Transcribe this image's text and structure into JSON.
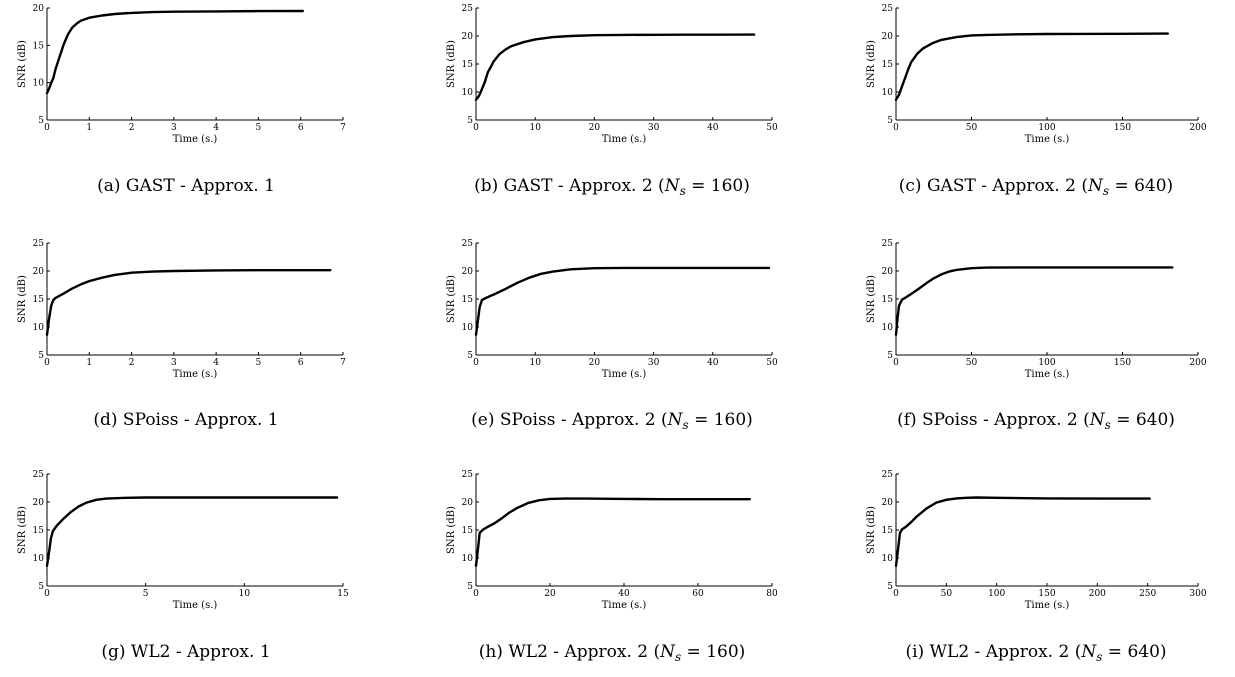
{
  "chart_data": [
    {
      "type": "line",
      "caption_prefix": "(a) GAST - Approx. 1",
      "caption_suffix": "",
      "xlabel": "Time (s.)",
      "ylabel": "SNR (dB)",
      "xlim": [
        0,
        7
      ],
      "ylim": [
        5,
        20
      ],
      "xticks": [
        "0",
        "1",
        "2",
        "3",
        "4",
        "5",
        "6",
        "7"
      ],
      "yticks": [
        "5",
        "10",
        "15",
        "20"
      ],
      "series": [
        {
          "x": [
            0,
            0.05,
            0.1,
            0.15,
            0.2,
            0.3,
            0.4,
            0.5,
            0.6,
            0.7,
            0.8,
            1,
            1.3,
            1.6,
            2,
            2.5,
            3,
            4,
            5,
            6.05
          ],
          "y": [
            8.6,
            9.2,
            10,
            10.6,
            11.8,
            13.5,
            15.2,
            16.5,
            17.4,
            17.9,
            18.3,
            18.7,
            19,
            19.2,
            19.35,
            19.45,
            19.5,
            19.55,
            19.58,
            19.6
          ]
        }
      ]
    },
    {
      "type": "line",
      "caption_prefix": "(b) GAST - Approx. 2 (",
      "caption_var": "N",
      "caption_sub": "s",
      "caption_suffix": " = 160)",
      "xlabel": "Time (s.)",
      "ylabel": "SNR (dB)",
      "xlim": [
        0,
        50
      ],
      "ylim": [
        5,
        25
      ],
      "xticks": [
        "0",
        "10",
        "20",
        "30",
        "40",
        "50"
      ],
      "yticks": [
        "5",
        "10",
        "15",
        "20",
        "25"
      ],
      "series": [
        {
          "x": [
            0,
            0.5,
            1,
            1.5,
            2,
            3,
            4,
            5,
            6,
            8,
            10,
            13,
            16,
            20,
            25,
            30,
            35,
            40,
            47
          ],
          "y": [
            8.6,
            9.3,
            10.5,
            11.8,
            13.5,
            15.5,
            16.8,
            17.6,
            18.2,
            18.9,
            19.4,
            19.8,
            20,
            20.15,
            20.2,
            20.22,
            20.23,
            20.24,
            20.25
          ]
        }
      ]
    },
    {
      "type": "line",
      "caption_prefix": "(c) GAST - Approx. 2 (",
      "caption_var": "N",
      "caption_sub": "s",
      "caption_suffix": " = 640)",
      "xlabel": "Time (s.)",
      "ylabel": "SNR (dB)",
      "xlim": [
        0,
        200
      ],
      "ylim": [
        5,
        25
      ],
      "xticks": [
        "0",
        "50",
        "100",
        "150",
        "200"
      ],
      "yticks": [
        "5",
        "10",
        "15",
        "20",
        "25"
      ],
      "series": [
        {
          "x": [
            0,
            2,
            4,
            6,
            8,
            10,
            14,
            18,
            24,
            30,
            40,
            50,
            60,
            80,
            100,
            120,
            150,
            180
          ],
          "y": [
            8.6,
            9.5,
            11,
            12.5,
            14,
            15.3,
            16.8,
            17.8,
            18.7,
            19.3,
            19.8,
            20.1,
            20.2,
            20.3,
            20.35,
            20.38,
            20.4,
            20.42
          ]
        }
      ]
    },
    {
      "type": "line",
      "caption_prefix": "(d) SPoiss - Approx. 1",
      "caption_suffix": "",
      "xlabel": "Time (s.)",
      "ylabel": "SNR (dB)",
      "xlim": [
        0,
        7
      ],
      "ylim": [
        5,
        25
      ],
      "xticks": [
        "0",
        "1",
        "2",
        "3",
        "4",
        "5",
        "6",
        "7"
      ],
      "yticks": [
        "5",
        "10",
        "15",
        "20",
        "25"
      ],
      "series": [
        {
          "x": [
            0,
            0.05,
            0.1,
            0.15,
            0.2,
            0.4,
            0.6,
            0.8,
            1,
            1.3,
            1.6,
            2,
            2.5,
            3,
            4,
            5,
            6,
            6.7
          ],
          "y": [
            8.6,
            11.5,
            13.8,
            14.8,
            15.2,
            16,
            16.9,
            17.6,
            18.2,
            18.8,
            19.3,
            19.7,
            19.9,
            20,
            20.1,
            20.15,
            20.15,
            20.15
          ]
        }
      ]
    },
    {
      "type": "line",
      "caption_prefix": "(e) SPoiss - Approx. 2 (",
      "caption_var": "N",
      "caption_sub": "s",
      "caption_suffix": " = 160)",
      "xlabel": "Time (s.)",
      "ylabel": "SNR (dB)",
      "xlim": [
        0,
        50
      ],
      "ylim": [
        5,
        25
      ],
      "xticks": [
        "0",
        "10",
        "20",
        "30",
        "40",
        "50"
      ],
      "yticks": [
        "5",
        "10",
        "15",
        "20",
        "25"
      ],
      "series": [
        {
          "x": [
            0,
            0.3,
            0.6,
            1,
            1.5,
            3,
            5,
            7,
            9,
            11,
            13,
            16,
            20,
            25,
            30,
            35,
            40,
            49.5
          ],
          "y": [
            8.6,
            11,
            13.5,
            14.8,
            15.1,
            15.8,
            16.8,
            17.9,
            18.8,
            19.5,
            19.9,
            20.3,
            20.5,
            20.55,
            20.55,
            20.55,
            20.55,
            20.55
          ]
        }
      ]
    },
    {
      "type": "line",
      "caption_prefix": "(f) SPoiss - Approx. 2 (",
      "caption_var": "N",
      "caption_sub": "s",
      "caption_suffix": " = 640)",
      "xlabel": "Time (s.)",
      "ylabel": "SNR (dB)",
      "xlim": [
        0,
        200
      ],
      "ylim": [
        5,
        25
      ],
      "xticks": [
        "0",
        "50",
        "100",
        "150",
        "200"
      ],
      "yticks": [
        "5",
        "10",
        "15",
        "20",
        "25"
      ],
      "series": [
        {
          "x": [
            0,
            1,
            2,
            4,
            6,
            10,
            15,
            20,
            25,
            30,
            35,
            40,
            50,
            60,
            80,
            100,
            150,
            183
          ],
          "y": [
            8.6,
            11.5,
            13.8,
            14.9,
            15.2,
            15.9,
            16.8,
            17.8,
            18.7,
            19.4,
            19.9,
            20.2,
            20.5,
            20.6,
            20.65,
            20.65,
            20.65,
            20.65
          ]
        }
      ]
    },
    {
      "type": "line",
      "caption_prefix": "(g) WL2 - Approx. 1",
      "caption_suffix": "",
      "xlabel": "Time (s.)",
      "ylabel": "SNR (dB)",
      "xlim": [
        0,
        15
      ],
      "ylim": [
        5,
        25
      ],
      "xticks": [
        "0",
        "5",
        "10",
        "15"
      ],
      "yticks": [
        "5",
        "10",
        "15",
        "20",
        "25"
      ],
      "series": [
        {
          "x": [
            0,
            0.1,
            0.2,
            0.3,
            0.5,
            0.8,
            1.2,
            1.6,
            2,
            2.5,
            3,
            4,
            5,
            7,
            10,
            12,
            14.7
          ],
          "y": [
            8.6,
            11,
            13.5,
            14.8,
            15.8,
            16.9,
            18.2,
            19.2,
            19.9,
            20.4,
            20.6,
            20.75,
            20.8,
            20.8,
            20.8,
            20.8,
            20.8
          ]
        }
      ]
    },
    {
      "type": "line",
      "caption_prefix": "(h) WL2 - Approx. 2 (",
      "caption_var": "N",
      "caption_sub": "s",
      "caption_suffix": " = 160)",
      "xlabel": "Time (s.)",
      "ylabel": "SNR (dB)",
      "xlim": [
        0,
        80
      ],
      "ylim": [
        5,
        25
      ],
      "xticks": [
        "0",
        "20",
        "40",
        "60",
        "80"
      ],
      "yticks": [
        "5",
        "10",
        "15",
        "20",
        "25"
      ],
      "series": [
        {
          "x": [
            0,
            0.5,
            1,
            2,
            3,
            5,
            7,
            9,
            11,
            14,
            17,
            20,
            24,
            30,
            40,
            50,
            60,
            74
          ],
          "y": [
            8.6,
            11.5,
            14.5,
            15.1,
            15.5,
            16.2,
            17.1,
            18.1,
            18.9,
            19.8,
            20.3,
            20.55,
            20.6,
            20.6,
            20.55,
            20.5,
            20.5,
            20.5
          ]
        }
      ]
    },
    {
      "type": "line",
      "caption_prefix": "(i) WL2 - Approx. 2 (",
      "caption_var": "N",
      "caption_sub": "s",
      "caption_suffix": " = 640)",
      "xlabel": "Time (s.)",
      "ylabel": "SNR (dB)",
      "xlim": [
        0,
        300
      ],
      "ylim": [
        5,
        25
      ],
      "xticks": [
        "0",
        "50",
        "100",
        "150",
        "200",
        "250",
        "300"
      ],
      "yticks": [
        "5",
        "10",
        "15",
        "20",
        "25"
      ],
      "series": [
        {
          "x": [
            0,
            2,
            4,
            6,
            10,
            15,
            20,
            30,
            40,
            50,
            60,
            70,
            80,
            100,
            150,
            200,
            252
          ],
          "y": [
            8.6,
            11.5,
            14.5,
            15.1,
            15.6,
            16.4,
            17.3,
            18.8,
            19.9,
            20.4,
            20.65,
            20.75,
            20.8,
            20.75,
            20.65,
            20.6,
            20.6
          ]
        }
      ]
    }
  ]
}
